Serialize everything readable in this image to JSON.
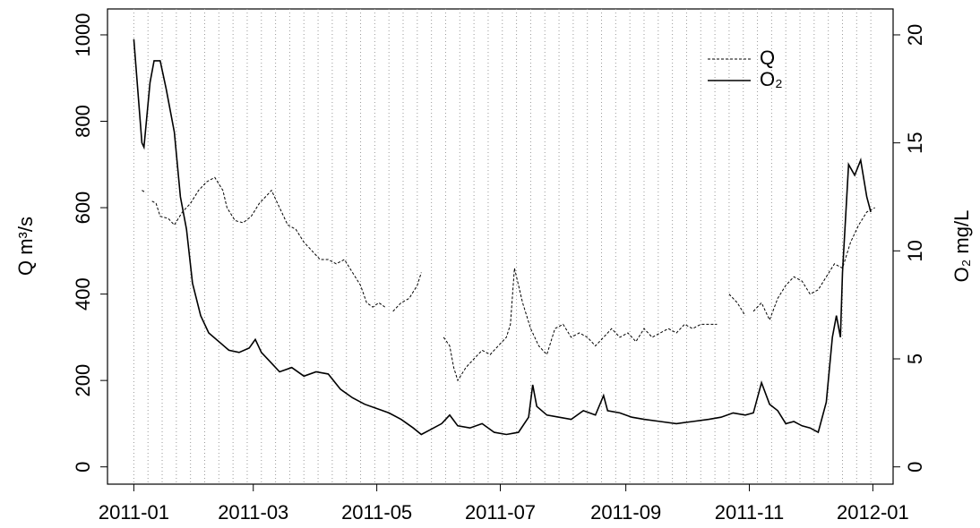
{
  "chart_data": {
    "type": "line",
    "y_label": "Q m³/s",
    "y2_label": "O₂ mg/L",
    "xlim": [
      -13,
      375
    ],
    "xticks": [
      {
        "value": 0,
        "label": "2011-01"
      },
      {
        "value": 59,
        "label": "2011-03"
      },
      {
        "value": 120,
        "label": "2011-05"
      },
      {
        "value": 181,
        "label": "2011-07"
      },
      {
        "value": 243,
        "label": "2011-09"
      },
      {
        "value": 304,
        "label": "2011-11"
      },
      {
        "value": 365,
        "label": "2012-01"
      }
    ],
    "ylim": [
      -40,
      1060
    ],
    "yticks": [
      0,
      200,
      400,
      600,
      800,
      1000
    ],
    "y2lim": [
      -0.8,
      21.2
    ],
    "y2ticks": [
      0,
      5,
      10,
      15,
      20
    ],
    "grid": true,
    "legend": "top-right",
    "series": [
      {
        "name": "Q",
        "color": "#000000",
        "dash": true,
        "x": [
          4,
          6,
          7,
          9,
          11,
          13,
          17,
          20,
          24,
          28,
          32,
          36,
          40,
          44,
          46,
          50,
          54,
          58,
          62,
          66,
          68,
          72,
          76,
          80,
          84,
          88,
          92,
          96,
          100,
          104,
          108,
          112,
          115,
          118,
          121,
          124,
          126,
          128,
          132,
          136,
          140,
          142,
          143,
          153,
          156,
          158,
          160,
          164,
          168,
          172,
          176,
          180,
          184,
          186,
          188,
          192,
          196,
          200,
          204,
          208,
          212,
          216,
          220,
          224,
          228,
          232,
          236,
          240,
          244,
          248,
          252,
          256,
          260,
          264,
          268,
          272,
          276,
          280,
          284,
          288,
          290,
          294,
          298,
          302,
          304,
          306,
          310,
          314,
          318,
          322,
          326,
          330,
          334,
          338,
          342,
          346,
          350,
          354,
          358,
          362,
          366
        ],
        "values": [
          640,
          635,
          null,
          615,
          610,
          580,
          575,
          560,
          590,
          610,
          640,
          660,
          670,
          640,
          600,
          570,
          565,
          580,
          610,
          630,
          640,
          600,
          560,
          550,
          520,
          500,
          480,
          480,
          470,
          480,
          450,
          420,
          380,
          370,
          380,
          370,
          null,
          360,
          380,
          390,
          420,
          450,
          null,
          300,
          280,
          230,
          200,
          230,
          250,
          270,
          260,
          280,
          300,
          330,
          460,
          380,
          320,
          280,
          260,
          320,
          330,
          300,
          310,
          300,
          280,
          300,
          320,
          300,
          310,
          290,
          320,
          300,
          310,
          320,
          310,
          330,
          320,
          330,
          330,
          330,
          null,
          400,
          380,
          350,
          null,
          360,
          380,
          340,
          390,
          420,
          440,
          430,
          400,
          410,
          440,
          470,
          460,
          520,
          560,
          590,
          600
        ]
      },
      {
        "name": "O₂",
        "color": "#000000",
        "dash": false,
        "axis": "y2",
        "x": [
          0,
          4,
          5,
          8,
          10,
          13,
          16,
          20,
          23,
          26,
          29,
          33,
          37,
          42,
          47,
          52,
          57,
          60,
          63,
          68,
          72,
          78,
          84,
          90,
          96,
          102,
          108,
          114,
          120,
          126,
          132,
          138,
          142,
          146,
          152,
          156,
          160,
          166,
          172,
          178,
          184,
          190,
          195,
          197,
          199,
          204,
          210,
          216,
          222,
          228,
          232,
          234,
          240,
          246,
          252,
          260,
          268,
          276,
          284,
          290,
          296,
          302,
          306,
          310,
          314,
          318,
          322,
          326,
          330,
          334,
          338,
          342,
          345,
          347,
          349,
          350,
          353,
          356,
          359,
          362,
          364
        ],
        "values": [
          19.8,
          15,
          14.8,
          17.8,
          18.8,
          18.8,
          17.5,
          15.5,
          12.5,
          11,
          8.5,
          7,
          6.2,
          5.8,
          5.4,
          5.3,
          5.5,
          5.9,
          5.3,
          4.8,
          4.4,
          4.6,
          4.2,
          4.4,
          4.3,
          3.6,
          3.2,
          2.9,
          2.7,
          2.5,
          2.2,
          1.8,
          1.5,
          1.7,
          2.0,
          2.4,
          1.9,
          1.8,
          2.0,
          1.6,
          1.5,
          1.6,
          2.3,
          3.8,
          2.8,
          2.4,
          2.3,
          2.2,
          2.6,
          2.4,
          3.3,
          2.6,
          2.5,
          2.3,
          2.2,
          2.1,
          2.0,
          2.1,
          2.2,
          2.3,
          2.5,
          2.4,
          2.5,
          3.9,
          2.9,
          2.6,
          2.0,
          2.1,
          1.9,
          1.8,
          1.6,
          3.0,
          6.0,
          7.0,
          6.0,
          9.0,
          14.0,
          13.5,
          14.2,
          12.5,
          11.8
        ]
      }
    ]
  }
}
